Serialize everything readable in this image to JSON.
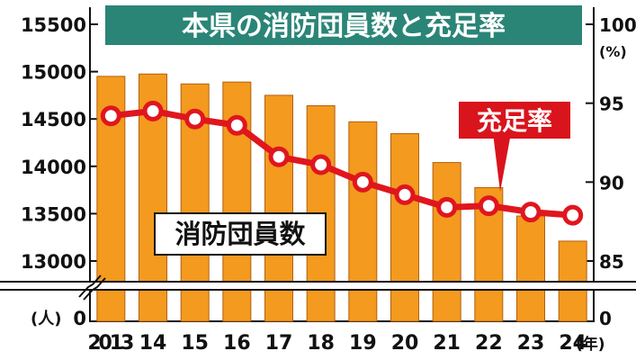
{
  "chart_data": {
    "type": "bar",
    "title": "本県の消防団員数と充足率",
    "categories": [
      "2013",
      "14",
      "15",
      "16",
      "17",
      "18",
      "19",
      "20",
      "21",
      "22",
      "23",
      "24"
    ],
    "x_unit": "(年)",
    "series": [
      {
        "name": "消防団員数",
        "type": "bar",
        "axis": "left",
        "values": [
          14950,
          14975,
          14870,
          14890,
          14750,
          14640,
          14470,
          14345,
          14040,
          13775,
          13475,
          13210
        ]
      },
      {
        "name": "充足率",
        "type": "line",
        "axis": "right",
        "values": [
          94.2,
          94.5,
          94.0,
          93.6,
          91.6,
          91.1,
          90.0,
          89.2,
          88.4,
          88.5,
          88.1,
          87.9
        ]
      }
    ],
    "left_axis": {
      "unit": "(人)",
      "ticks": [
        15500,
        15000,
        14500,
        14000,
        13500,
        13000
      ],
      "zero_label": "0",
      "ylim": [
        13000,
        15500
      ],
      "broken": true
    },
    "right_axis": {
      "unit": "(%)",
      "ticks": [
        100,
        95,
        90,
        85
      ],
      "zero_label": "0",
      "ylim": [
        85,
        100
      ],
      "broken": true
    },
    "grid": false,
    "legend_placement": "inline labels",
    "colors": {
      "bar": "#f39a1f",
      "bar_edge": "#b3600c",
      "line": "#e0161e",
      "marker_fill": "#ffffff",
      "title_bg": "#2a8577",
      "callout_bg": "#d9141c"
    }
  }
}
